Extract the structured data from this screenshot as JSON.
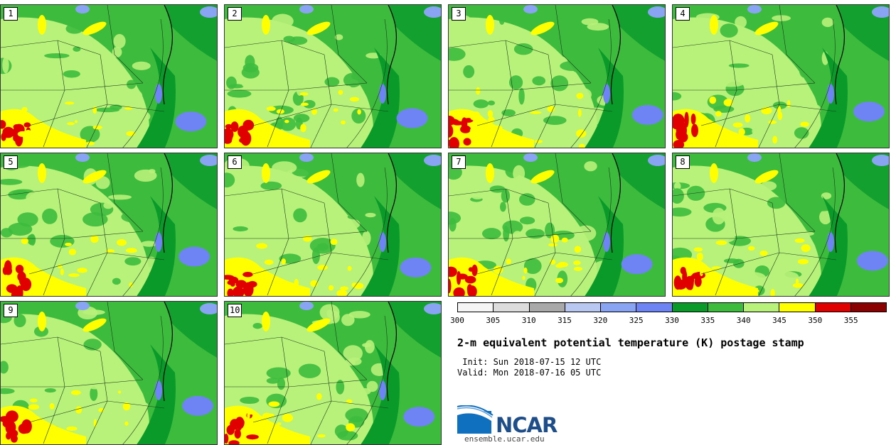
{
  "panels": [
    {
      "label": "1"
    },
    {
      "label": "2"
    },
    {
      "label": "3"
    },
    {
      "label": "4"
    },
    {
      "label": "5"
    },
    {
      "label": "6"
    },
    {
      "label": "7"
    },
    {
      "label": "8"
    },
    {
      "label": "9"
    },
    {
      "label": "10"
    }
  ],
  "colorbar": {
    "colors": [
      "#f5f5f5",
      "#dcdcdc",
      "#a9a9a9",
      "#b8c8f0",
      "#8aa4f4",
      "#6e84f4",
      "#0a9a2a",
      "#3dbb3d",
      "#b8f27a",
      "#ffff00",
      "#e00000",
      "#8b0000"
    ],
    "ticks": [
      "300",
      "305",
      "310",
      "315",
      "320",
      "325",
      "330",
      "335",
      "340",
      "345",
      "350",
      "355"
    ]
  },
  "title": "2-m equivalent potential temperature (K) postage stamp",
  "init": " Init: Sun 2018-07-15 12 UTC",
  "valid": "Valid: Mon 2018-07-16 05 UTC",
  "logo": {
    "text": "NCAR",
    "site": "ensemble.ucar.edu"
  }
}
